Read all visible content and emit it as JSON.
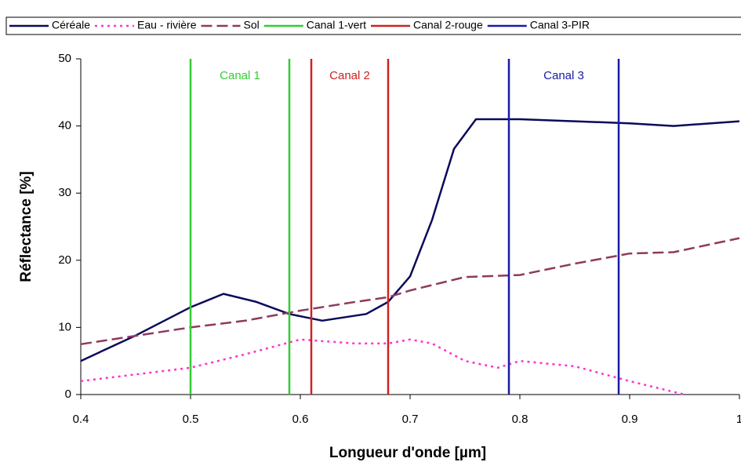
{
  "chart_data": {
    "type": "line",
    "x_label": "Longueur d'onde [µm]",
    "y_label": "Réflectance [%]",
    "xlim": [
      0.4,
      1
    ],
    "xticks": [
      0.4,
      0.5,
      0.6,
      0.7,
      0.8,
      0.9,
      1
    ],
    "ylim": [
      0,
      50
    ],
    "yticks": [
      0,
      10,
      20,
      30,
      40,
      50
    ],
    "grid": false,
    "legend": "top",
    "series": [
      {
        "name": "Céréale",
        "color": "#0a0a5c",
        "style": "solid",
        "x": [
          0.4,
          0.45,
          0.5,
          0.53,
          0.56,
          0.59,
          0.62,
          0.66,
          0.68,
          0.7,
          0.72,
          0.74,
          0.76,
          0.8,
          0.85,
          0.9,
          0.94,
          1
        ],
        "values": [
          5,
          8.8,
          13,
          15,
          13.8,
          12,
          11,
          12,
          13.8,
          17.6,
          26,
          36.6,
          41,
          41,
          40.7,
          40.4,
          40,
          40.7
        ]
      },
      {
        "name": "Eau - rivière",
        "color": "#ff33cc",
        "style": "dotted",
        "x": [
          0.4,
          0.5,
          0.55,
          0.6,
          0.65,
          0.68,
          0.7,
          0.72,
          0.75,
          0.78,
          0.8,
          0.85,
          0.9,
          0.95
        ],
        "values": [
          2,
          4,
          6,
          8.2,
          7.6,
          7.6,
          8.2,
          7.6,
          5,
          4,
          5,
          4.2,
          2,
          0
        ]
      },
      {
        "name": "Sol",
        "color": "#8e3a5e",
        "style": "dashed",
        "x": [
          0.4,
          0.5,
          0.55,
          0.6,
          0.65,
          0.68,
          0.7,
          0.75,
          0.8,
          0.85,
          0.9,
          0.94,
          1
        ],
        "values": [
          7.5,
          10,
          11,
          12.5,
          13.8,
          14.5,
          15.5,
          17.5,
          17.8,
          19.5,
          21,
          21.2,
          23.3
        ]
      },
      {
        "name": "Canal 1-vert",
        "color": "#33cc33",
        "style": "vline",
        "x": [
          0.5,
          0.59
        ]
      },
      {
        "name": "Canal 2-rouge",
        "color": "#cc2222",
        "style": "vline",
        "x": [
          0.61,
          0.68
        ]
      },
      {
        "name": "Canal 3-PIR",
        "color": "#1a1aa6",
        "style": "vline",
        "x": [
          0.79,
          0.89
        ]
      }
    ],
    "annotations": [
      "Canal 1",
      "Canal 2",
      "Canal 3"
    ]
  }
}
